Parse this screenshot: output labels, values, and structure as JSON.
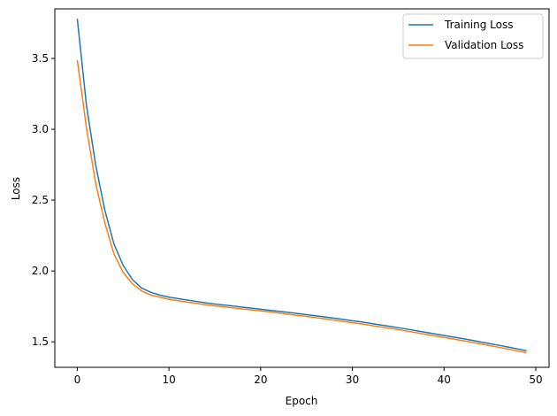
{
  "chart_data": {
    "type": "line",
    "xlabel": "Epoch",
    "ylabel": "Loss",
    "xlim": [
      -2.45,
      51.45
    ],
    "ylim": [
      1.32,
      3.85
    ],
    "xticks": [
      0,
      10,
      20,
      30,
      40,
      50
    ],
    "yticks": [
      1.5,
      2.0,
      2.5,
      3.0,
      3.5
    ],
    "xtick_labels": [
      "0",
      "10",
      "20",
      "30",
      "40",
      "50"
    ],
    "ytick_labels": [
      "1.5",
      "2.0",
      "2.5",
      "3.0",
      "3.5"
    ],
    "grid": false,
    "legend_position": "top-right",
    "x": [
      0,
      1,
      2,
      3,
      4,
      5,
      6,
      7,
      8,
      9,
      10,
      11,
      12,
      13,
      14,
      15,
      16,
      17,
      18,
      19,
      20,
      21,
      22,
      23,
      24,
      25,
      26,
      27,
      28,
      29,
      30,
      31,
      32,
      33,
      34,
      35,
      36,
      37,
      38,
      39,
      40,
      41,
      42,
      43,
      44,
      45,
      46,
      47,
      48,
      49
    ],
    "series": [
      {
        "name": "Training Loss",
        "color": "#1f77b4",
        "values": [
          3.78,
          3.17,
          2.75,
          2.43,
          2.19,
          2.04,
          1.94,
          1.88,
          1.85,
          1.83,
          1.815,
          1.805,
          1.795,
          1.785,
          1.775,
          1.767,
          1.76,
          1.753,
          1.745,
          1.738,
          1.73,
          1.722,
          1.715,
          1.708,
          1.7,
          1.692,
          1.684,
          1.675,
          1.667,
          1.658,
          1.649,
          1.64,
          1.63,
          1.62,
          1.61,
          1.6,
          1.589,
          1.578,
          1.567,
          1.556,
          1.545,
          1.534,
          1.523,
          1.511,
          1.499,
          1.487,
          1.475,
          1.463,
          1.45,
          1.437
        ]
      },
      {
        "name": "Validation Loss",
        "color": "#ff7f0e",
        "values": [
          3.49,
          3.01,
          2.62,
          2.34,
          2.12,
          1.99,
          1.91,
          1.86,
          1.83,
          1.815,
          1.8,
          1.79,
          1.78,
          1.771,
          1.762,
          1.754,
          1.747,
          1.74,
          1.732,
          1.725,
          1.718,
          1.711,
          1.703,
          1.695,
          1.687,
          1.679,
          1.671,
          1.662,
          1.653,
          1.644,
          1.635,
          1.626,
          1.616,
          1.606,
          1.596,
          1.586,
          1.575,
          1.564,
          1.553,
          1.542,
          1.531,
          1.52,
          1.509,
          1.497,
          1.485,
          1.473,
          1.461,
          1.449,
          1.436,
          1.423
        ]
      }
    ]
  }
}
